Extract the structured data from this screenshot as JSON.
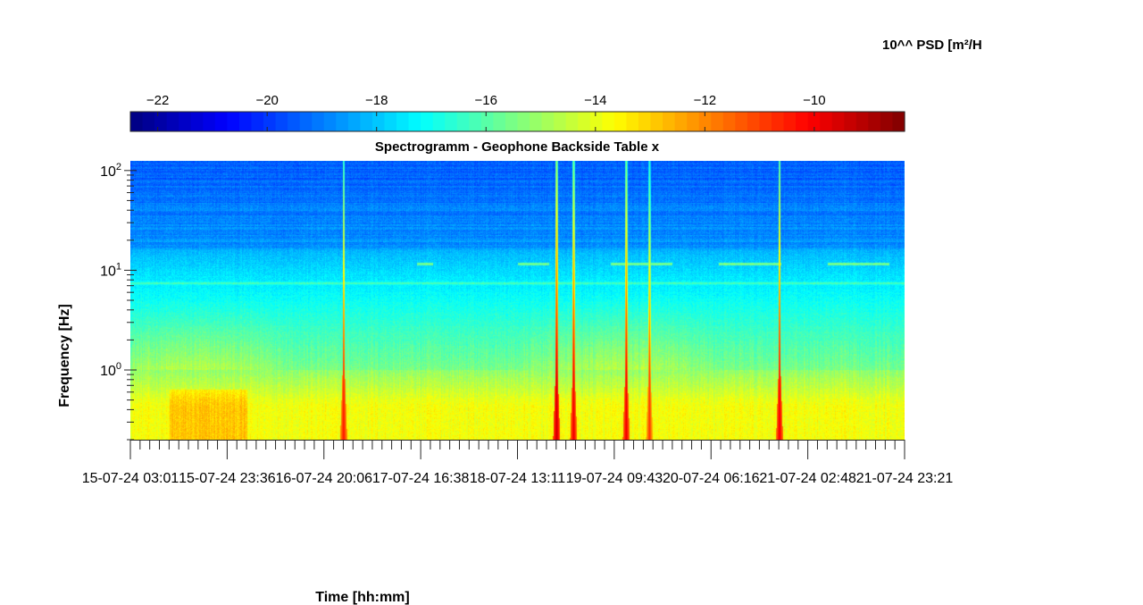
{
  "chart_data": {
    "type": "heatmap",
    "title": "Spectrogramm - Geophone Backside Table x",
    "xlabel": "Time [hh:mm]",
    "ylabel": "Frequency [Hz]",
    "colorbar_label": "10^^ PSD [m²/H",
    "colormap": "jet",
    "colorbar_ticks": [
      -22,
      -20,
      -18,
      -16,
      -14,
      -12,
      -10
    ],
    "colorbar_range": [
      -22.5,
      -8.35
    ],
    "y_scale": "log",
    "y_range_hz": [
      0.2,
      125
    ],
    "y_ticks": [
      {
        "value": 1,
        "base": "10",
        "exp": "0"
      },
      {
        "value": 10,
        "base": "10",
        "exp": "1"
      },
      {
        "value": 100,
        "base": "10",
        "exp": "2"
      }
    ],
    "x_tick_labels": [
      "15-07-24  03:01",
      "15-07-24  23:36",
      "16-07-24  20:06",
      "17-07-24  16:38",
      "18-07-24  13:11",
      "19-07-24  09:43",
      "20-07-24  06:16",
      "21-07-24  02:48",
      "21-07-24  23:21"
    ],
    "features": {
      "background_high_freq_log10psd": -19.5,
      "mid_band_log10psd": -16.5,
      "low_band_log10psd": -13.5,
      "persistent_line_hz": 7.4,
      "transient_events": [
        {
          "time_fraction": 0.275,
          "peak_log10psd": -10.5
        },
        {
          "time_fraction": 0.55,
          "peak_log10psd": -9.5
        },
        {
          "time_fraction": 0.572,
          "peak_log10psd": -10
        },
        {
          "time_fraction": 0.64,
          "peak_log10psd": -10
        },
        {
          "time_fraction": 0.67,
          "peak_log10psd": -11
        },
        {
          "time_fraction": 0.838,
          "peak_log10psd": -10
        }
      ],
      "intermittent_bands_hz": 11.5
    }
  }
}
